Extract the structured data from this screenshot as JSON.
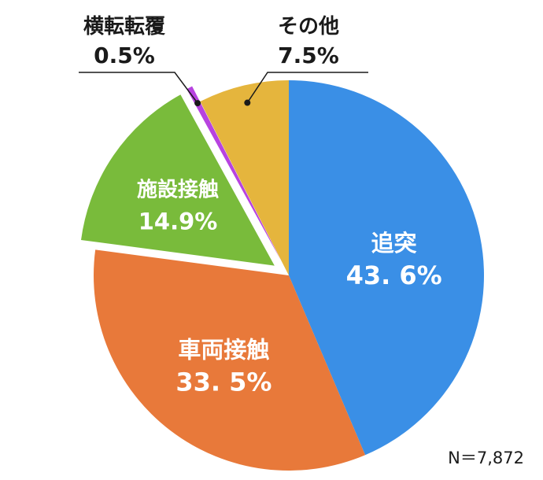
{
  "chart_data": {
    "type": "pie",
    "title": "",
    "note": "N＝7,872",
    "slices": [
      {
        "label": "追突",
        "value_text": "43. 6%",
        "value": 43.6,
        "color": "#3a8fe6",
        "exploded": false,
        "label_inside": true
      },
      {
        "label": "車両接触",
        "value_text": "33. 5%",
        "value": 33.5,
        "color": "#e8793a",
        "exploded": false,
        "label_inside": true
      },
      {
        "label": "施設接触",
        "value_text": "14.9%",
        "value": 14.9,
        "color": "#79bb3b",
        "exploded": true,
        "label_inside": true
      },
      {
        "label": "横転転覆",
        "value_text": "0.5%",
        "value": 0.5,
        "color": "#b743e0",
        "exploded": true,
        "label_inside": false
      },
      {
        "label": "その他",
        "value_text": "7.5%",
        "value": 7.5,
        "color": "#e5b53d",
        "exploded": false,
        "label_inside": false
      }
    ]
  }
}
